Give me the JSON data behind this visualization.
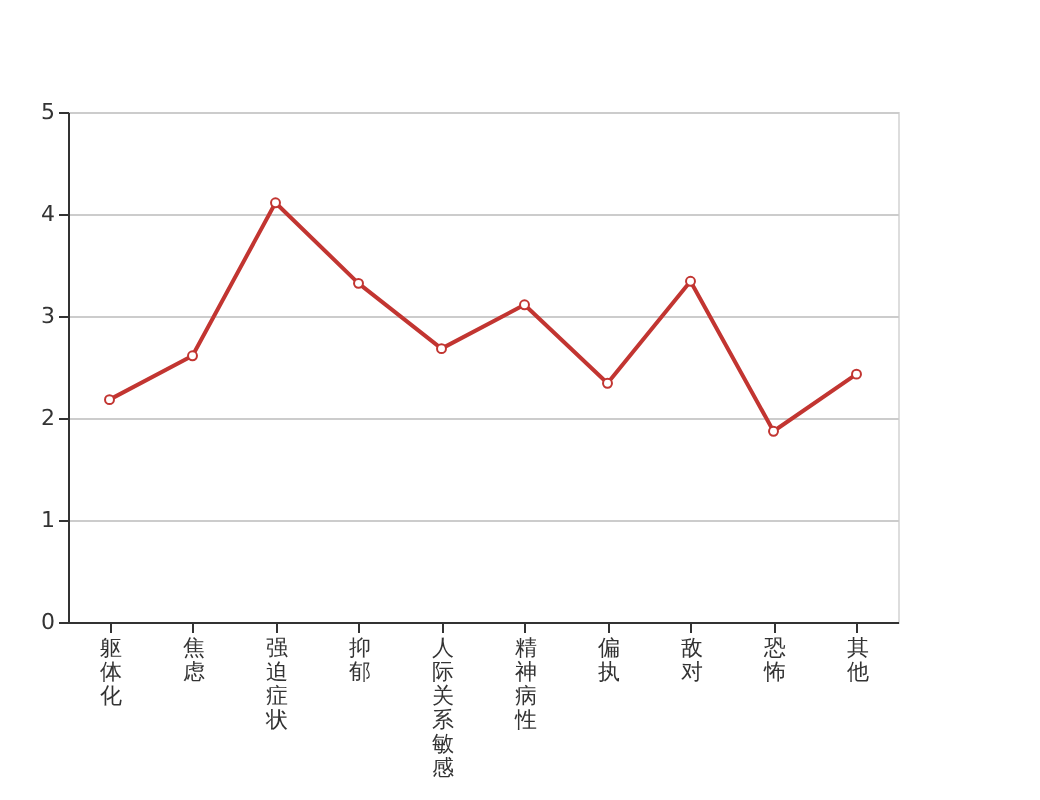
{
  "chart_data": {
    "type": "line",
    "categories": [
      "躯体化",
      "焦虑",
      "强迫症状",
      "抑郁",
      "人际关系敏感",
      "精神病性",
      "偏执",
      "敌对",
      "恐怖",
      "其他"
    ],
    "series": [
      {
        "color": "#c23531",
        "values": [
          2.18,
          2.61,
          4.11,
          3.32,
          2.68,
          3.11,
          2.34,
          3.34,
          1.87,
          2.43
        ]
      }
    ],
    "ylim": [
      0,
      5
    ],
    "yticks": [
      0,
      1,
      2,
      3,
      4,
      5
    ],
    "grid": "y",
    "marker": "circle",
    "line_style": "solid"
  }
}
